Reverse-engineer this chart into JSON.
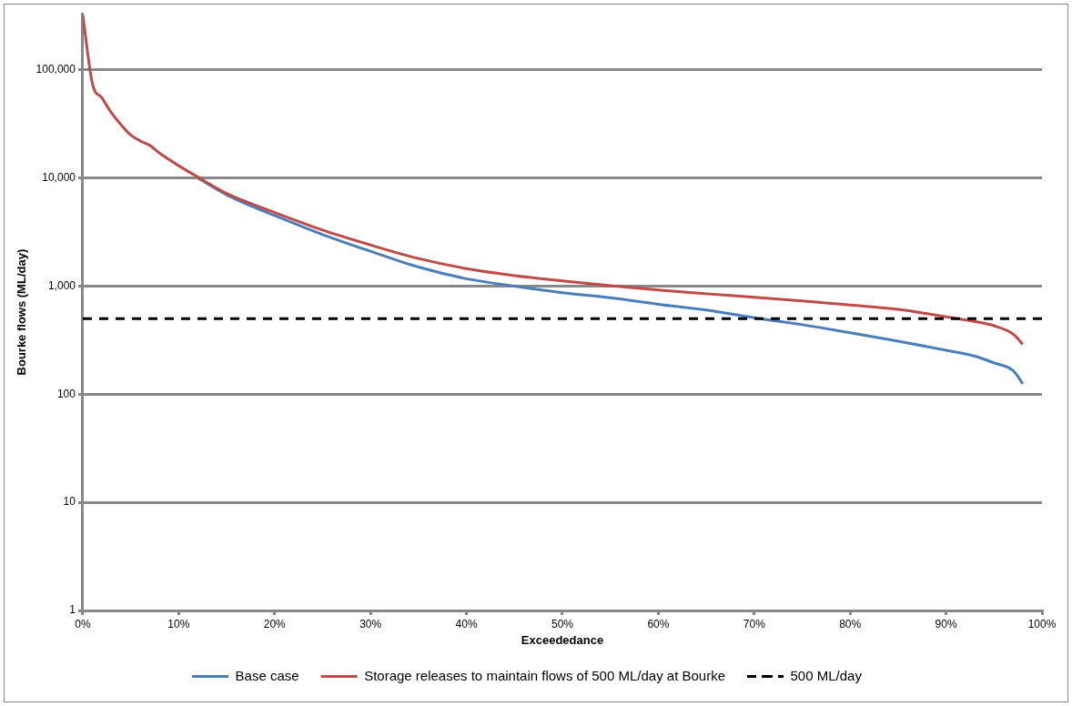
{
  "chart_data": {
    "type": "line",
    "xlabel": "Exceededance",
    "ylabel": "Bourke flows (ML/day)",
    "log": "y",
    "grid": "y",
    "legend": "bottom",
    "marker": "none",
    "line_style": "solid",
    "xlim": [
      0,
      100
    ],
    "xticks": [
      {
        "value": 0,
        "label": "0%"
      },
      {
        "value": 10,
        "label": "10%"
      },
      {
        "value": 20,
        "label": "20%"
      },
      {
        "value": 30,
        "label": "30%"
      },
      {
        "value": 40,
        "label": "40%"
      },
      {
        "value": 50,
        "label": "50%"
      },
      {
        "value": 60,
        "label": "60%"
      },
      {
        "value": 70,
        "label": "70%"
      },
      {
        "value": 80,
        "label": "80%"
      },
      {
        "value": 90,
        "label": "90%"
      },
      {
        "value": 100,
        "label": "100%"
      }
    ],
    "ylim": [
      1,
      330000
    ],
    "yticks": [
      1,
      10,
      100,
      {
        "value": 1000,
        "label": "1,000"
      },
      {
        "value": 10000,
        "label": "10,000"
      },
      {
        "value": 100000,
        "label": "100,000"
      }
    ],
    "x": [
      0,
      1,
      2,
      3,
      4,
      5,
      6,
      7,
      8,
      10,
      12,
      15,
      18,
      20,
      25,
      30,
      35,
      40,
      45,
      50,
      55,
      60,
      65,
      70,
      75,
      80,
      85,
      90,
      93,
      95,
      97,
      98
    ],
    "series": [
      {
        "name": "Base case",
        "color": "#4a7ebb",
        "values": [
          null,
          null,
          null,
          null,
          null,
          null,
          null,
          null,
          null,
          null,
          10000,
          7000,
          5300,
          4500,
          3000,
          2100,
          1500,
          1170,
          1000,
          870,
          780,
          680,
          600,
          510,
          440,
          370,
          310,
          255,
          225,
          195,
          165,
          125
        ]
      },
      {
        "name": "Storage releases to maintain flows of 500 ML/day at Bourke",
        "color": "#be4b48",
        "values": [
          320000,
          75000,
          55000,
          40000,
          31000,
          25000,
          22000,
          20000,
          17000,
          13000,
          10200,
          7200,
          5600,
          4800,
          3300,
          2400,
          1800,
          1450,
          1250,
          1120,
          1010,
          920,
          850,
          790,
          730,
          670,
          610,
          520,
          470,
          430,
          360,
          290
        ]
      }
    ],
    "ref_lines": [
      {
        "axis": "y",
        "value": 500,
        "label": "500 ML/day",
        "color": "#000000",
        "line_style": "dashed"
      }
    ]
  }
}
